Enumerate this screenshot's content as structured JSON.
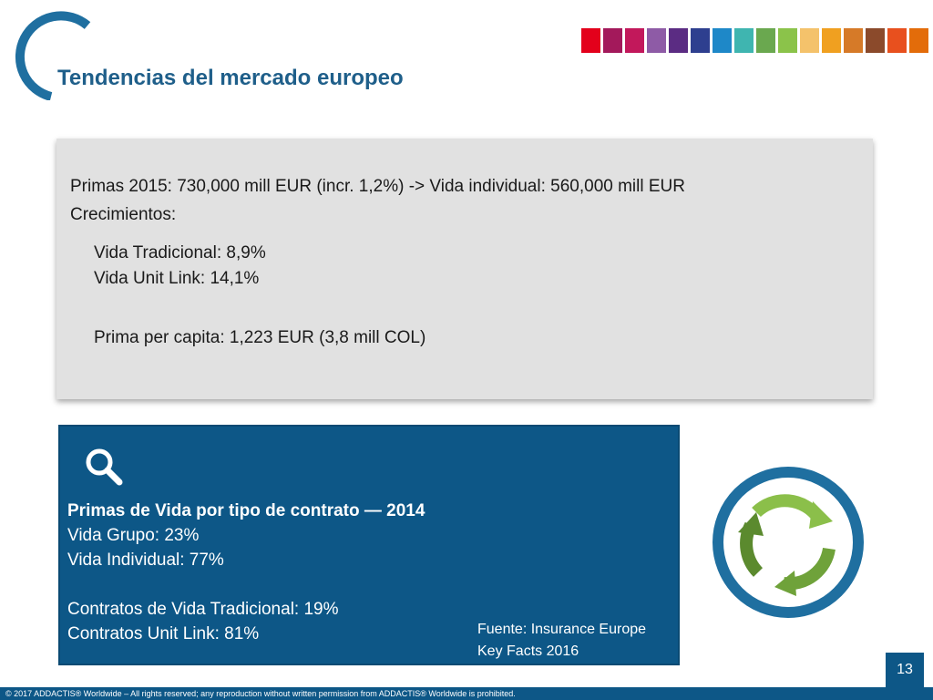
{
  "header": {
    "title": "Tendencias del mercado europeo",
    "brand_colors": [
      "#e3001b",
      "#a3195b",
      "#c2185b",
      "#8e5ba6",
      "#5b2c83",
      "#2e3f8f",
      "#1e88c8",
      "#3fb5b0",
      "#6aa84f",
      "#8bc34a",
      "#f4c26b",
      "#f0a020",
      "#d67a28",
      "#8b4a2b",
      "#e8501e",
      "#e36c0a"
    ]
  },
  "info_box": {
    "line1": "Primas 2015: 730,000 mill EUR (incr. 1,2%) -> Vida individual: 560,000 mill EUR",
    "line2": "Crecimientos:",
    "line3": "Vida Tradicional: 8,9%",
    "line4": "Vida Unit Link: 14,1%",
    "line5": "Prima per capita: 1,223 EUR (3,8 mill COL)"
  },
  "blue_box": {
    "heading": "Primas de Vida por tipo de contrato — 2014",
    "line1": "Vida Grupo: 23%",
    "line2": "Vida Individual: 77%",
    "line3": "Contratos de Vida Tradicional: 19%",
    "line4": "Contratos Unit Link: 81%",
    "source1": "Fuente: Insurance Europe",
    "source2": "Key Facts 2016",
    "icon": "search-icon"
  },
  "decor": {
    "cycle_icon": "cycle-arrows-icon"
  },
  "footer": {
    "text": "© 2017 ADDACTIS® Worldwide – All rights reserved; any reproduction without written permission from ADDACTIS® Worldwide is prohibited.",
    "page_number": "13"
  }
}
